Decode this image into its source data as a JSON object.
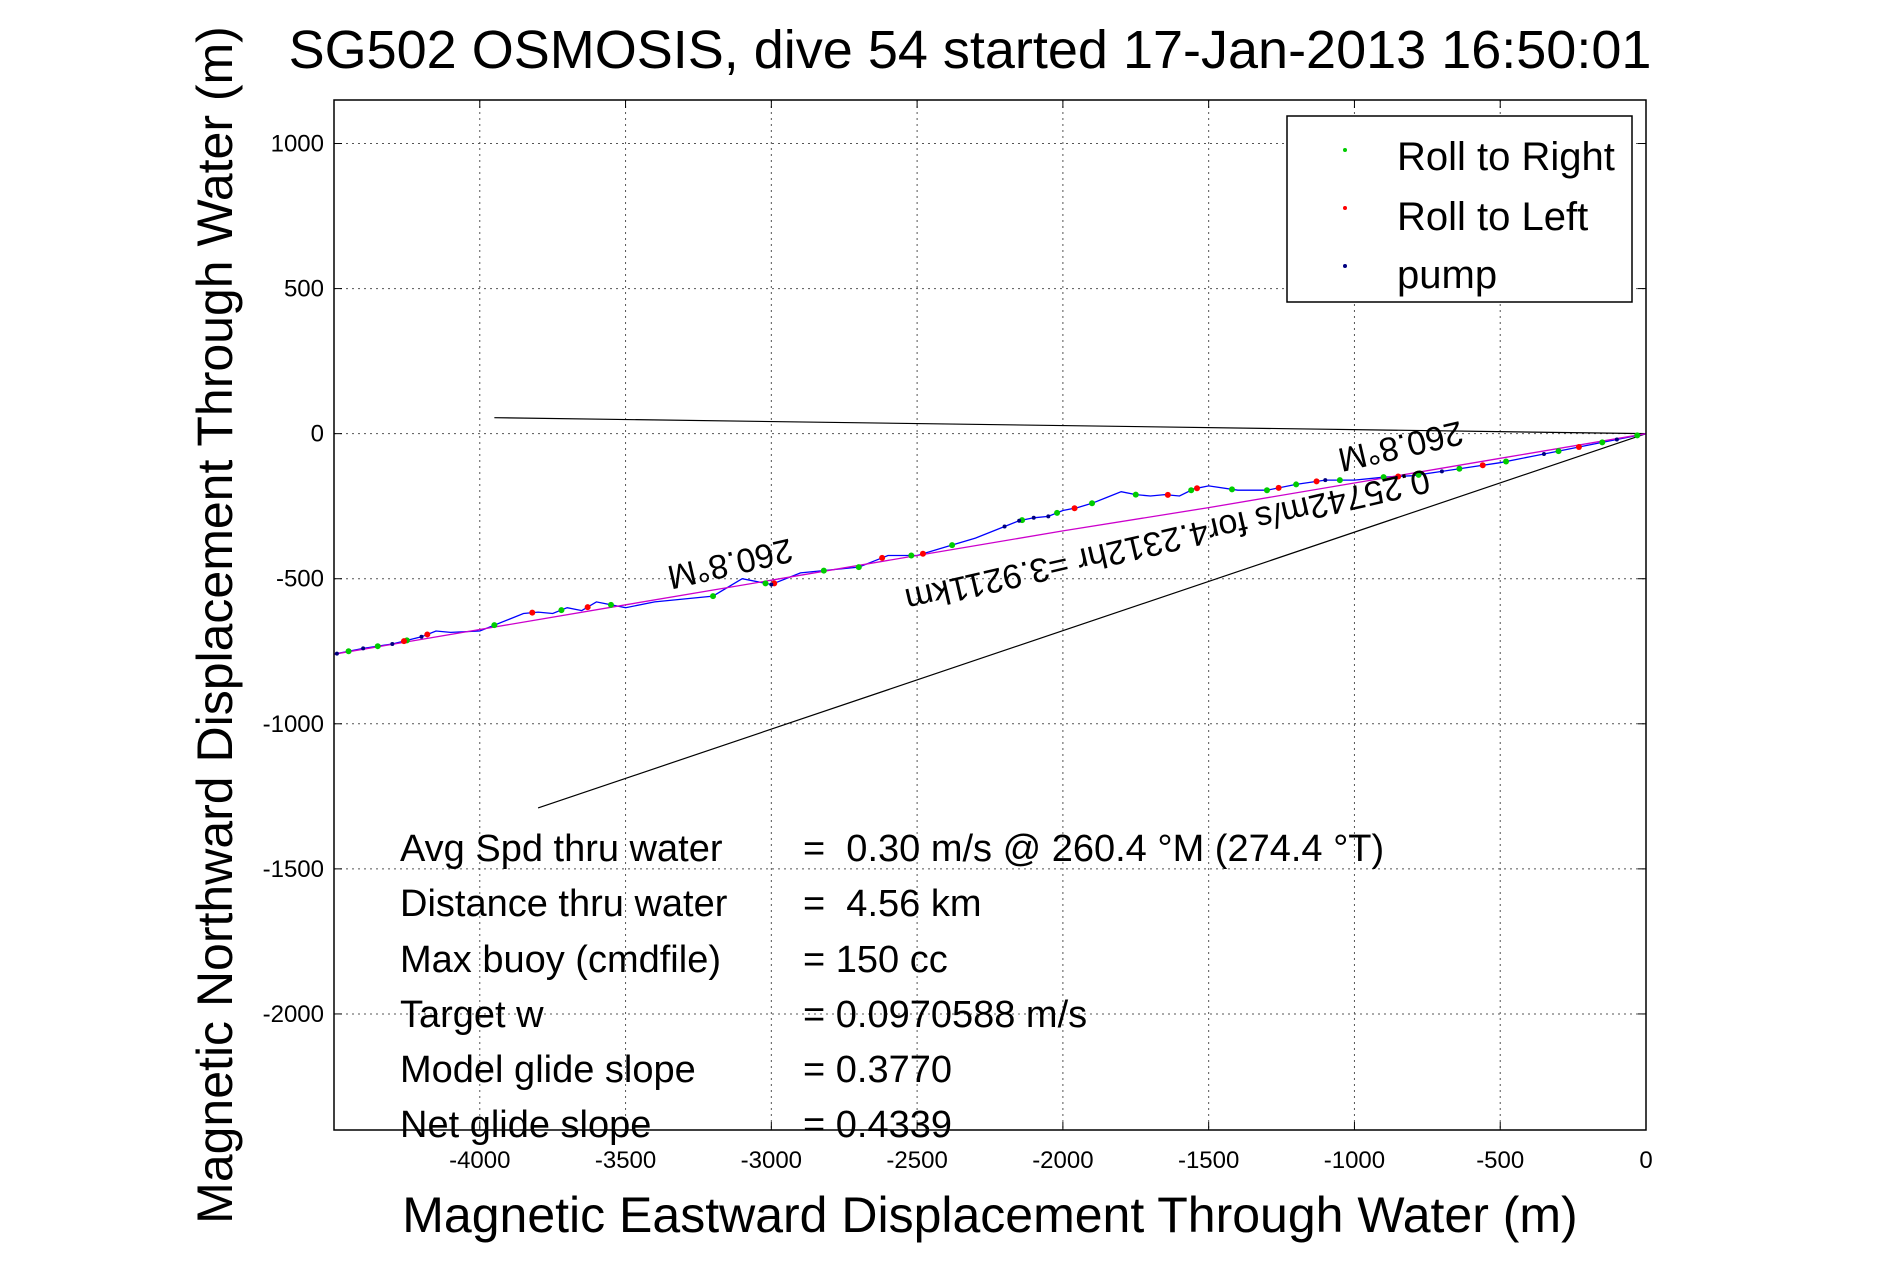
{
  "chart_data": {
    "type": "line",
    "title": "SG502 OSMOSIS, dive 54 started 17-Jan-2013 16:50:01",
    "xlabel": "Magnetic Eastward Displacement Through Water (m)",
    "ylabel": "Magnetic Northward Displacement Through Water (m)",
    "xlim": [
      -4500,
      0
    ],
    "ylim": [
      -2400,
      1150
    ],
    "grid": true,
    "x_ticks": [
      -4000,
      -3500,
      -3000,
      -2500,
      -2000,
      -1500,
      -1000,
      -500,
      0
    ],
    "y_ticks": [
      1000,
      500,
      0,
      -500,
      -1000,
      -1500,
      -2000
    ],
    "legend_position": "top-right",
    "legend": [
      {
        "label": "Roll to Right",
        "color": "#00cc00"
      },
      {
        "label": "Roll to Left",
        "color": "#ff0000"
      },
      {
        "label": "pump",
        "color": "#000080"
      }
    ],
    "series": [
      {
        "color": "#0000ff",
        "x": [
          0,
          -100,
          -200,
          -300,
          -400,
          -500,
          -600,
          -700,
          -800,
          -900,
          -1000,
          -1100,
          -1200,
          -1300,
          -1400,
          -1500,
          -1550,
          -1600,
          -1650,
          -1700,
          -1750,
          -1800,
          -1850,
          -1900,
          -1950,
          -2000,
          -2050,
          -2100,
          -2150,
          -2200,
          -2300,
          -2400,
          -2500,
          -2600,
          -2650,
          -2700,
          -2800,
          -2900,
          -3000,
          -3100,
          -3200,
          -3300,
          -3400,
          -3500,
          -3600,
          -3650,
          -3700,
          -3750,
          -3800,
          -3850,
          -3900,
          -4000,
          -4100,
          -4150,
          -4200,
          -4300,
          -4400,
          -4500
        ],
        "y": [
          0,
          -20,
          -40,
          -60,
          -80,
          -100,
          -115,
          -130,
          -145,
          -150,
          -160,
          -160,
          -175,
          -195,
          -195,
          -180,
          -190,
          -215,
          -210,
          -215,
          -210,
          -200,
          -220,
          -240,
          -255,
          -265,
          -285,
          -290,
          -300,
          -320,
          -360,
          -390,
          -420,
          -420,
          -440,
          -460,
          -470,
          -480,
          -520,
          -500,
          -560,
          -570,
          -580,
          -600,
          -580,
          -610,
          -600,
          -620,
          -615,
          -620,
          -640,
          -680,
          -685,
          -680,
          -700,
          -725,
          -740,
          -760
        ]
      },
      {
        "color": "#cc00cc",
        "x": [
          0,
          -500,
          -1000,
          -1500,
          -2000,
          -2500,
          -3000,
          -3500,
          -4000,
          -4500
        ],
        "y": [
          0,
          -85,
          -170,
          -255,
          -335,
          -420,
          -505,
          -590,
          -675,
          -760
        ]
      }
    ],
    "markers": {
      "roll_right_x": [
        -4450,
        -4350,
        -4250,
        -3950,
        -3720,
        -3550,
        -3200,
        -3020,
        -2820,
        -2700,
        -2520,
        -2380,
        -2140,
        -2020,
        -1900,
        -1750,
        -1560,
        -1420,
        -1300,
        -1200,
        -1050,
        -900,
        -780,
        -640,
        -480,
        -300,
        -150,
        -30
      ],
      "roll_left_x": [
        -4260,
        -4180,
        -3820,
        -3630,
        -2990,
        -2620,
        -2480,
        -1960,
        -1640,
        -1540,
        -1260,
        -1130,
        -850,
        -560,
        -230
      ],
      "pump_x": [
        -4490,
        -4400,
        -4300,
        -4200,
        -3000,
        -2200,
        -2150,
        -2100,
        -2050,
        -1100,
        -700,
        -350,
        -100
      ]
    },
    "lines": [
      {
        "x": [
          0,
          -3950
        ],
        "y": [
          0,
          55
        ]
      },
      {
        "x": [
          0,
          -3800
        ],
        "y": [
          0,
          -1290
        ]
      }
    ],
    "annotations": [
      {
        "text": "260.8°M",
        "x": -3150,
        "y": -410
      },
      {
        "text": "260.8°M",
        "x": -850,
        "y": -5
      },
      {
        "text": "0.25742m/s for4.2312hr =3.9211km",
        "x": -1650,
        "y": -330
      }
    ],
    "stats": [
      {
        "label": "Avg Spd thru water",
        "value": "=  0.30 m/s @ 260.4 °M (274.4 °T)"
      },
      {
        "label": "Distance thru water",
        "value": "=  4.56 km"
      },
      {
        "label": "Max buoy (cmdfile)",
        "value": "= 150 cc"
      },
      {
        "label": "Target w",
        "value": "= 0.0970588 m/s"
      },
      {
        "label": "Model glide slope",
        "value": "= 0.3770"
      },
      {
        "label": "Net glide slope",
        "value": "= 0.4339"
      }
    ]
  }
}
